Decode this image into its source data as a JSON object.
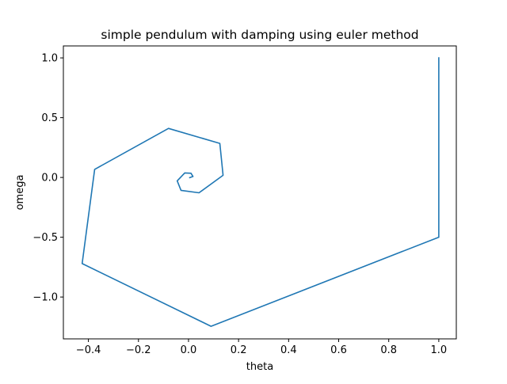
{
  "chart_data": {
    "type": "line",
    "title": "simple pendulum with damping using euler method",
    "xlabel": "theta",
    "ylabel": "omega",
    "xlim": [
      -0.5,
      1.07
    ],
    "ylim": [
      -1.35,
      1.1
    ],
    "xticks": [
      {
        "value": -0.4,
        "label": "−0.4"
      },
      {
        "value": -0.2,
        "label": "−0.2"
      },
      {
        "value": 0.0,
        "label": "0.0"
      },
      {
        "value": 0.2,
        "label": "0.2"
      },
      {
        "value": 0.4,
        "label": "0.4"
      },
      {
        "value": 0.6,
        "label": "0.6"
      },
      {
        "value": 0.8,
        "label": "0.8"
      },
      {
        "value": 1.0,
        "label": "1.0"
      }
    ],
    "yticks": [
      {
        "value": -1.0,
        "label": "−1.0"
      },
      {
        "value": -0.5,
        "label": "−0.5"
      },
      {
        "value": 0.0,
        "label": "0.0"
      },
      {
        "value": 0.5,
        "label": "0.5"
      },
      {
        "value": 1.0,
        "label": "1.0"
      }
    ],
    "grid": false,
    "series": [
      {
        "color": "#1f77b4",
        "x": [
          1.0,
          1.0,
          0.09,
          -0.425,
          -0.375,
          -0.08,
          0.125,
          0.138,
          0.042,
          -0.03,
          -0.045,
          -0.015,
          0.01,
          0.018,
          0.005
        ],
        "y": [
          1.0,
          -0.5,
          -1.245,
          -0.72,
          0.068,
          0.41,
          0.285,
          0.018,
          -0.128,
          -0.108,
          -0.028,
          0.038,
          0.035,
          0.008,
          -0.002
        ]
      }
    ]
  }
}
